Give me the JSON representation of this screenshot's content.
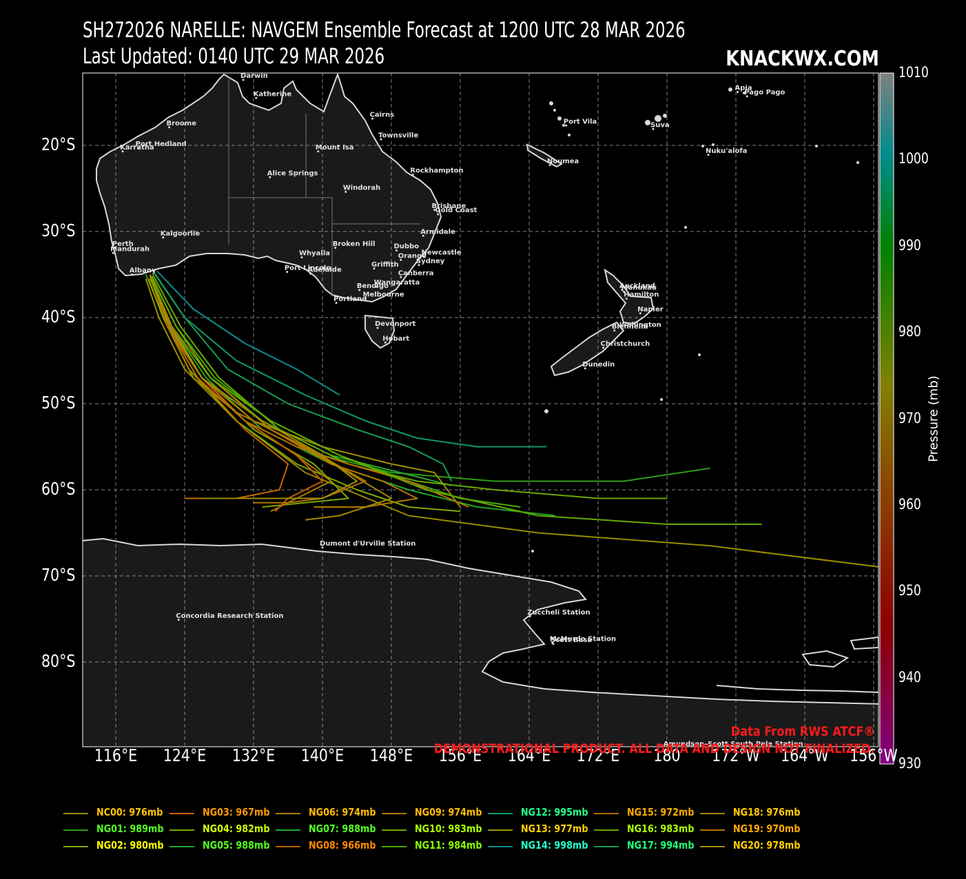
{
  "title": {
    "line1": "SH272026 NARELLE: NAVGEM Ensemble Forecast at 1200 UTC 28 MAR 2026",
    "line2": "Last Updated: 0140 UTC 29 MAR 2026",
    "brand": "KNACKWX.COM"
  },
  "axes": {
    "lat_labels": [
      "20°S",
      "30°S",
      "40°S",
      "50°S",
      "60°S",
      "70°S",
      "80°S"
    ],
    "lon_labels": [
      "116°E",
      "124°E",
      "132°E",
      "140°E",
      "148°E",
      "156°E",
      "164°E",
      "172°E",
      "180",
      "172°W",
      "164°W",
      "156°W"
    ]
  },
  "colorbar": {
    "label": "Pressure (mb)",
    "ticks": [
      "1010",
      "1000",
      "990",
      "980",
      "970",
      "960",
      "950",
      "940",
      "930"
    ],
    "colors": [
      "#808080",
      "#008b8b",
      "#008000",
      "#808000",
      "#8b4500",
      "#8b0000",
      "#800080"
    ]
  },
  "credits": {
    "line1": "Data From RWS ATCF®",
    "line2": "DEMONSTRATIONAL PRODUCT. ALL DATA AND DESIGN NOT FINALIZED."
  },
  "places": [
    {
      "name": "Darwin",
      "lon": 130.8,
      "lat": -12.4
    },
    {
      "name": "Katherine",
      "lon": 132.3,
      "lat": -14.5
    },
    {
      "name": "Cairns",
      "lon": 145.8,
      "lat": -16.9
    },
    {
      "name": "Broome",
      "lon": 122.2,
      "lat": -17.9
    },
    {
      "name": "Townsville",
      "lon": 146.8,
      "lat": -19.3
    },
    {
      "name": "Port Hedland",
      "lon": 118.6,
      "lat": -20.3
    },
    {
      "name": "Karratha",
      "lon": 116.8,
      "lat": -20.7
    },
    {
      "name": "Mount Isa",
      "lon": 139.5,
      "lat": -20.7
    },
    {
      "name": "Alice Springs",
      "lon": 133.9,
      "lat": -23.7
    },
    {
      "name": "Rockhampton",
      "lon": 150.5,
      "lat": -23.4
    },
    {
      "name": "Windorah",
      "lon": 142.7,
      "lat": -25.4
    },
    {
      "name": "Brisbane",
      "lon": 153.0,
      "lat": -27.5
    },
    {
      "name": "Gold Coast",
      "lon": 153.4,
      "lat": -28.0
    },
    {
      "name": "Armidale",
      "lon": 151.7,
      "lat": -30.5
    },
    {
      "name": "Kalgoorlie",
      "lon": 121.5,
      "lat": -30.7
    },
    {
      "name": "Perth",
      "lon": 115.9,
      "lat": -31.9
    },
    {
      "name": "Mandurah",
      "lon": 115.7,
      "lat": -32.5
    },
    {
      "name": "Broken Hill",
      "lon": 141.5,
      "lat": -31.9
    },
    {
      "name": "Dubbo",
      "lon": 148.6,
      "lat": -32.2
    },
    {
      "name": "Whyalla",
      "lon": 137.6,
      "lat": -33.0
    },
    {
      "name": "Newcastle",
      "lon": 151.8,
      "lat": -32.9
    },
    {
      "name": "Orange",
      "lon": 149.1,
      "lat": -33.3
    },
    {
      "name": "Sydney",
      "lon": 151.2,
      "lat": -33.9
    },
    {
      "name": "Griffith",
      "lon": 146.0,
      "lat": -34.3
    },
    {
      "name": "Port Lincoln",
      "lon": 135.9,
      "lat": -34.7
    },
    {
      "name": "Adelaide",
      "lon": 138.6,
      "lat": -34.9
    },
    {
      "name": "Albany",
      "lon": 117.9,
      "lat": -35.0
    },
    {
      "name": "Canberra",
      "lon": 149.1,
      "lat": -35.3
    },
    {
      "name": "Wangaratta",
      "lon": 146.3,
      "lat": -36.4
    },
    {
      "name": "Bendigo",
      "lon": 144.3,
      "lat": -36.8
    },
    {
      "name": "Melbourne",
      "lon": 145.0,
      "lat": -37.8
    },
    {
      "name": "Portland",
      "lon": 141.6,
      "lat": -38.3
    },
    {
      "name": "Devonport",
      "lon": 146.4,
      "lat": -41.2
    },
    {
      "name": "Hobart",
      "lon": 147.3,
      "lat": -42.9
    },
    {
      "name": "Port Vila",
      "lon": 168.3,
      "lat": -17.7
    },
    {
      "name": "Noumea",
      "lon": 166.4,
      "lat": -22.3
    },
    {
      "name": "Suva",
      "lon": 178.4,
      "lat": -18.1
    },
    {
      "name": "Apia",
      "lon": -171.8,
      "lat": -13.8
    },
    {
      "name": "Pago Pago",
      "lon": -170.7,
      "lat": -14.3
    },
    {
      "name": "Nuku'alofa",
      "lon": -175.2,
      "lat": -21.1
    },
    {
      "name": "Auckland",
      "lon": 174.8,
      "lat": -36.8
    },
    {
      "name": "Manukau",
      "lon": 175.0,
      "lat": -37.0
    },
    {
      "name": "Hamilton",
      "lon": 175.3,
      "lat": -37.8
    },
    {
      "name": "Napier",
      "lon": 176.9,
      "lat": -39.5
    },
    {
      "name": "Wellington",
      "lon": 174.8,
      "lat": -41.3
    },
    {
      "name": "Blenheim",
      "lon": 173.9,
      "lat": -41.5
    },
    {
      "name": "Christchurch",
      "lon": 172.6,
      "lat": -43.5
    },
    {
      "name": "Dunedin",
      "lon": 170.5,
      "lat": -45.9
    },
    {
      "name": "Dumont d'Urville Station",
      "lon": 140.0,
      "lat": -66.7
    },
    {
      "name": "Concordia Research Station",
      "lon": 123.3,
      "lat": -75.1
    },
    {
      "name": "Zuccheli Station",
      "lon": 164.1,
      "lat": -74.7
    },
    {
      "name": "McMurdo Station",
      "lon": 166.7,
      "lat": -77.8
    },
    {
      "name": "Scott Base",
      "lon": 166.8,
      "lat": -77.9
    },
    {
      "name": "Amundsen–Scott South Pole Station",
      "lon": 179.9,
      "lat": -90.0
    }
  ],
  "tracks": [
    {
      "name": "NC00",
      "label": "NC00: 976mb",
      "color": "#9a8d00",
      "pts": [
        [
          119.5,
          -35.5
        ],
        [
          121,
          -40
        ],
        [
          124,
          -46
        ],
        [
          130,
          -52
        ],
        [
          138,
          -58
        ],
        [
          150,
          -63
        ],
        [
          165,
          -65
        ],
        [
          185,
          -66.5
        ],
        [
          205,
          -69
        ]
      ]
    },
    {
      "name": "NG01",
      "label": "NG01: 989mb",
      "color": "#2e9c14",
      "pts": [
        [
          119.5,
          -35
        ],
        [
          122,
          -41
        ],
        [
          126,
          -47
        ],
        [
          132,
          -52
        ],
        [
          140,
          -56
        ],
        [
          148,
          -58
        ],
        [
          160,
          -59
        ],
        [
          175,
          -59
        ],
        [
          185,
          -57.5
        ]
      ]
    },
    {
      "name": "NG02",
      "label": "NG02: 980mb",
      "color": "#7fa800",
      "pts": [
        [
          119.8,
          -35.5
        ],
        [
          121.5,
          -40
        ],
        [
          124.5,
          -46
        ],
        [
          130,
          -52
        ],
        [
          137,
          -57
        ],
        [
          144,
          -60
        ],
        [
          150,
          -62
        ],
        [
          156,
          -62.5
        ]
      ]
    },
    {
      "name": "NG03",
      "label": "NG03: 967mb",
      "color": "#c46a00",
      "pts": [
        [
          120,
          -35
        ],
        [
          122,
          -41
        ],
        [
          125.5,
          -47
        ],
        [
          131,
          -53
        ],
        [
          136,
          -57
        ],
        [
          135,
          -60
        ],
        [
          130,
          -61
        ],
        [
          124,
          -61
        ]
      ]
    },
    {
      "name": "NG04",
      "label": "NG04: 982mb",
      "color": "#7aa800",
      "pts": [
        [
          120,
          -35.5
        ],
        [
          122.5,
          -41
        ],
        [
          126,
          -47
        ],
        [
          132,
          -53
        ],
        [
          139,
          -57
        ],
        [
          143,
          -61
        ],
        [
          138,
          -61.5
        ],
        [
          133,
          -62
        ]
      ]
    },
    {
      "name": "NG05",
      "label": "NG05: 988mb",
      "color": "#1fa82a",
      "pts": [
        [
          120,
          -35
        ],
        [
          122.5,
          -41
        ],
        [
          126.5,
          -47
        ],
        [
          133,
          -53
        ],
        [
          141,
          -57
        ],
        [
          150,
          -60
        ],
        [
          158,
          -62
        ],
        [
          167,
          -63
        ]
      ]
    },
    {
      "name": "NG06",
      "label": "NG06: 974mb",
      "color": "#b07c00",
      "pts": [
        [
          120,
          -35
        ],
        [
          122,
          -41
        ],
        [
          126,
          -47
        ],
        [
          131,
          -52
        ],
        [
          137,
          -56
        ],
        [
          141,
          -59
        ],
        [
          137,
          -61
        ],
        [
          134,
          -62.5
        ]
      ]
    },
    {
      "name": "NG07",
      "label": "NG07: 988mb",
      "color": "#24a82e",
      "pts": [
        [
          120.2,
          -35.3
        ],
        [
          123,
          -41
        ],
        [
          127,
          -47
        ],
        [
          133,
          -52
        ],
        [
          141,
          -56
        ],
        [
          149,
          -58
        ],
        [
          155,
          -59.5
        ]
      ]
    },
    {
      "name": "NG08",
      "label": "NG08: 966mb",
      "color": "#c45f00",
      "pts": [
        [
          120,
          -35
        ],
        [
          122,
          -41
        ],
        [
          126,
          -47
        ],
        [
          131,
          -52
        ],
        [
          137,
          -56
        ],
        [
          140,
          -59
        ],
        [
          136,
          -61
        ],
        [
          134.5,
          -62.5
        ]
      ]
    },
    {
      "name": "NG09",
      "label": "NG09: 974mb",
      "color": "#b07a00",
      "pts": [
        [
          120,
          -35.2
        ],
        [
          122.5,
          -41
        ],
        [
          127,
          -47
        ],
        [
          134,
          -53
        ],
        [
          141,
          -57
        ],
        [
          147,
          -59
        ],
        [
          151,
          -61
        ],
        [
          145,
          -62
        ],
        [
          139,
          -62
        ]
      ]
    },
    {
      "name": "NG10",
      "label": "NG10: 983mb",
      "color": "#6aaa00",
      "pts": [
        [
          120.3,
          -35
        ],
        [
          123.5,
          -41
        ],
        [
          128,
          -47
        ],
        [
          135,
          -53
        ],
        [
          143,
          -57
        ],
        [
          151,
          -59
        ],
        [
          160,
          -60
        ],
        [
          172,
          -61
        ],
        [
          180,
          -61
        ]
      ]
    },
    {
      "name": "NG11",
      "label": "NG11: 984mb",
      "color": "#4cab08",
      "pts": [
        [
          120.2,
          -35.2
        ],
        [
          123,
          -41
        ],
        [
          127.5,
          -47
        ],
        [
          134,
          -52
        ],
        [
          142,
          -56
        ],
        [
          150,
          -59
        ],
        [
          156,
          -61
        ],
        [
          163,
          -62
        ]
      ]
    },
    {
      "name": "NG12",
      "label": "NG12: 995mb",
      "color": "#109a64",
      "pts": [
        [
          120.5,
          -34.8
        ],
        [
          124,
          -40
        ],
        [
          130,
          -45
        ],
        [
          138,
          -49
        ],
        [
          145,
          -52
        ],
        [
          151,
          -54
        ],
        [
          158,
          -55
        ],
        [
          166,
          -55
        ]
      ]
    },
    {
      "name": "NG13",
      "label": "NG13: 977mb",
      "color": "#a09000",
      "pts": [
        [
          120,
          -35.2
        ],
        [
          122.2,
          -41
        ],
        [
          126,
          -47
        ],
        [
          132,
          -52
        ],
        [
          140,
          -55
        ],
        [
          148,
          -57
        ],
        [
          153,
          -58
        ],
        [
          156,
          -62
        ]
      ]
    },
    {
      "name": "NG14",
      "label": "NG14: 998mb",
      "color": "#108a8a",
      "pts": [
        [
          120.8,
          -34.6
        ],
        [
          125,
          -39
        ],
        [
          131,
          -43
        ],
        [
          137,
          -46
        ],
        [
          142,
          -49
        ]
      ]
    },
    {
      "name": "NG15",
      "label": "NG15: 972mb",
      "color": "#b86e00",
      "pts": [
        [
          120,
          -35
        ],
        [
          122,
          -41
        ],
        [
          125.5,
          -47
        ],
        [
          131,
          -52
        ],
        [
          137,
          -55
        ],
        [
          143,
          -57
        ],
        [
          150,
          -59
        ],
        [
          157,
          -62
        ]
      ]
    },
    {
      "name": "NG16",
      "label": "NG16: 983mb",
      "color": "#64aa00",
      "pts": [
        [
          120.2,
          -35.3
        ],
        [
          123,
          -41
        ],
        [
          127,
          -47
        ],
        [
          134,
          -52
        ],
        [
          142,
          -56
        ],
        [
          152,
          -60
        ],
        [
          165,
          -63
        ],
        [
          180,
          -64
        ],
        [
          191,
          -64
        ]
      ]
    },
    {
      "name": "NG17",
      "label": "NG17: 994mb",
      "color": "#189c4c",
      "pts": [
        [
          120.5,
          -34.9
        ],
        [
          124,
          -40
        ],
        [
          129,
          -46
        ],
        [
          136,
          -50
        ],
        [
          144,
          -53
        ],
        [
          150,
          -55
        ],
        [
          154,
          -57
        ],
        [
          155,
          -59
        ]
      ]
    },
    {
      "name": "NG18",
      "label": "NG18: 976mb",
      "color": "#a48a00",
      "pts": [
        [
          120,
          -35.3
        ],
        [
          122,
          -41
        ],
        [
          125,
          -47
        ],
        [
          130,
          -51
        ],
        [
          136,
          -54
        ],
        [
          143,
          -58
        ],
        [
          148,
          -61
        ],
        [
          142,
          -63
        ],
        [
          138,
          -63.5
        ]
      ]
    },
    {
      "name": "NG19",
      "label": "NG19: 970mb",
      "color": "#b47200",
      "pts": [
        [
          120,
          -35
        ],
        [
          122,
          -41
        ],
        [
          126,
          -47
        ],
        [
          132,
          -52
        ],
        [
          138,
          -55
        ],
        [
          145,
          -59
        ],
        [
          140,
          -61
        ],
        [
          136,
          -61.5
        ],
        [
          132,
          -61.5
        ]
      ]
    },
    {
      "name": "NG20",
      "label": "NG20: 978mb",
      "color": "#a09000",
      "pts": [
        [
          120,
          -35.2
        ],
        [
          122.3,
          -41
        ],
        [
          126,
          -47
        ],
        [
          133,
          -52
        ],
        [
          140,
          -56
        ],
        [
          144,
          -59
        ],
        [
          140,
          -61
        ],
        [
          131,
          -61
        ],
        [
          126,
          -61
        ]
      ]
    }
  ],
  "legend_text_colors": {
    "NC00": "#ffc400",
    "NG01": "#55ff22",
    "NG02": "#ffff00",
    "NG03": "#ff9900",
    "NG04": "#ccff00",
    "NG05": "#55ff22",
    "NG06": "#ffbb00",
    "NG07": "#55ff22",
    "NG08": "#ff8800",
    "NG09": "#ffbb00",
    "NG10": "#aaff00",
    "NG11": "#88ff00",
    "NG12": "#22ff88",
    "NG13": "#ffd000",
    "NG14": "#22ffcc",
    "NG15": "#ffaa00",
    "NG16": "#aaff00",
    "NG17": "#22ff77",
    "NG18": "#ffcc00",
    "NG19": "#ffaa00",
    "NG20": "#ffd000"
  }
}
